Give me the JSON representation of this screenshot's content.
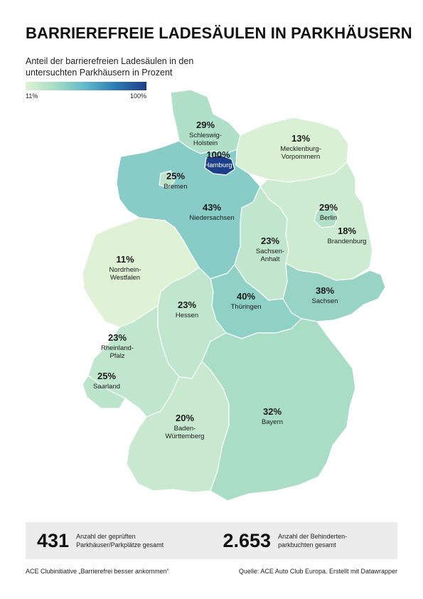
{
  "title": "BARRIEREFREIE LADESÄULEN IN PARKHÄUSERN",
  "subtitle": "Anteil der barrierefreien Ladesäulen in den untersuchten Parkhäusern in Prozent",
  "legend": {
    "min_label": "11%",
    "max_label": "100%",
    "min": 11,
    "max": 100
  },
  "map_data": {
    "type": "choropleth",
    "region": "Germany",
    "color_scale": [
      "#dff2d6",
      "#a6dcc5",
      "#5fb8c9",
      "#2b7ab3",
      "#1d3f8a"
    ],
    "states": [
      {
        "id": "sh",
        "name": "Schleswig-Holstein",
        "name_lines": [
          "Schleswig-",
          "Holstein"
        ],
        "value": 29,
        "label": "29%"
      },
      {
        "id": "hh",
        "name": "Hamburg",
        "name_lines": [
          "Hamburg"
        ],
        "value": 100,
        "label": "100%"
      },
      {
        "id": "mv",
        "name": "Mecklenburg-Vorpommern",
        "name_lines": [
          "Mecklenburg-",
          "Vorpommern"
        ],
        "value": 13,
        "label": "13%"
      },
      {
        "id": "hb",
        "name": "Bremen",
        "name_lines": [
          "Bremen"
        ],
        "value": 25,
        "label": "25%"
      },
      {
        "id": "ni",
        "name": "Niedersachsen",
        "name_lines": [
          "Niedersachsen"
        ],
        "value": 43,
        "label": "43%"
      },
      {
        "id": "be",
        "name": "Berlin",
        "name_lines": [
          "Berlin"
        ],
        "value": 29,
        "label": "29%"
      },
      {
        "id": "bb",
        "name": "Brandenburg",
        "name_lines": [
          "Brandenburg"
        ],
        "value": 18,
        "label": "18%"
      },
      {
        "id": "st",
        "name": "Sachsen-Anhalt",
        "name_lines": [
          "Sachsen-",
          "Anhalt"
        ],
        "value": 23,
        "label": "23%"
      },
      {
        "id": "nw",
        "name": "Nordrhein-Westfalen",
        "name_lines": [
          "Nordrhein-",
          "Westfalen"
        ],
        "value": 11,
        "label": "11%"
      },
      {
        "id": "th",
        "name": "Thüringen",
        "name_lines": [
          "Thüringen"
        ],
        "value": 40,
        "label": "40%"
      },
      {
        "id": "sn",
        "name": "Sachsen",
        "name_lines": [
          "Sachsen"
        ],
        "value": 38,
        "label": "38%"
      },
      {
        "id": "he",
        "name": "Hessen",
        "name_lines": [
          "Hessen"
        ],
        "value": 23,
        "label": "23%"
      },
      {
        "id": "rp",
        "name": "Rheinland-Pfalz",
        "name_lines": [
          "Rheinland-",
          "Pfalz"
        ],
        "value": 23,
        "label": "23%"
      },
      {
        "id": "sl",
        "name": "Saarland",
        "name_lines": [
          "Saarland"
        ],
        "value": 25,
        "label": "25%"
      },
      {
        "id": "bw",
        "name": "Baden-Württemberg",
        "name_lines": [
          "Baden-",
          "Württemberg"
        ],
        "value": 20,
        "label": "20%"
      },
      {
        "id": "by",
        "name": "Bayern",
        "name_lines": [
          "Bayern"
        ],
        "value": 32,
        "label": "32%"
      }
    ]
  },
  "stats": [
    {
      "number": "431",
      "description": "Anzahl der geprüften Parkhäuser/Parkplätze gesamt"
    },
    {
      "number": "2.653",
      "description": "Anzahl der Behinderten-parkbuchten gesamt"
    }
  ],
  "footer": {
    "left": "ACE Clubinitiative „Barrierefrei besser ankommen“",
    "right": "Quelle: ACE Auto Club Europa. Erstellt mit Datawrapper"
  }
}
